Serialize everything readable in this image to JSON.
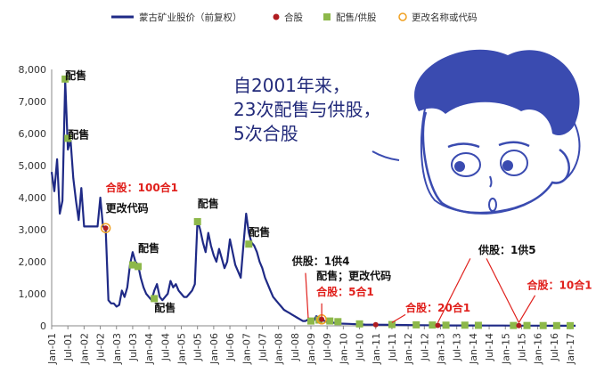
{
  "colors": {
    "price_line": "#1f2a86",
    "merge_marker": "#b01c20",
    "placement_marker": "#8db84a",
    "rename_marker": "#f0a020",
    "annotation_red": "#e0201c",
    "bubble_text": "#222a7a",
    "cartoon_hair": "#3a4bb0"
  },
  "bubble": {
    "line1": "自2001年来，",
    "line2": "23次配售与供股，",
    "line3": "5次合股"
  },
  "chart_data": {
    "type": "line",
    "series": [
      {
        "name": "蒙古矿业股价（前复权）",
        "points": [
          [
            "2001-01",
            4800
          ],
          [
            "2001-02",
            4200
          ],
          [
            "2001-03",
            5200
          ],
          [
            "2001-04",
            3500
          ],
          [
            "2001-05",
            3900
          ],
          [
            "2001-06",
            7650
          ],
          [
            "2001-07",
            5500
          ],
          [
            "2001-08",
            5800
          ],
          [
            "2001-09",
            4600
          ],
          [
            "2001-10",
            3900
          ],
          [
            "2001-11",
            3300
          ],
          [
            "2001-12",
            4300
          ],
          [
            "2002-01",
            3100
          ],
          [
            "2002-02",
            3100
          ],
          [
            "2002-03",
            3100
          ],
          [
            "2002-04",
            3100
          ],
          [
            "2002-05",
            3100
          ],
          [
            "2002-06",
            3100
          ],
          [
            "2002-07",
            4000
          ],
          [
            "2002-08",
            3100
          ],
          [
            "2002-09",
            3050
          ],
          [
            "2002-10",
            800
          ],
          [
            "2002-11",
            700
          ],
          [
            "2002-12",
            700
          ],
          [
            "2003-01",
            600
          ],
          [
            "2003-02",
            650
          ],
          [
            "2003-03",
            1100
          ],
          [
            "2003-04",
            900
          ],
          [
            "2003-05",
            1200
          ],
          [
            "2003-06",
            1900
          ],
          [
            "2003-07",
            2300
          ],
          [
            "2003-08",
            2000
          ],
          [
            "2003-09",
            1900
          ],
          [
            "2003-10",
            1500
          ],
          [
            "2003-11",
            1200
          ],
          [
            "2003-12",
            1000
          ],
          [
            "2004-01",
            900
          ],
          [
            "2004-02",
            800
          ],
          [
            "2004-03",
            1100
          ],
          [
            "2004-04",
            1300
          ],
          [
            "2004-05",
            900
          ],
          [
            "2004-06",
            800
          ],
          [
            "2004-07",
            900
          ],
          [
            "2004-08",
            1000
          ],
          [
            "2004-09",
            1400
          ],
          [
            "2004-10",
            1200
          ],
          [
            "2004-11",
            1300
          ],
          [
            "2004-12",
            1100
          ],
          [
            "2005-01",
            1000
          ],
          [
            "2005-02",
            900
          ],
          [
            "2005-03",
            900
          ],
          [
            "2005-04",
            1000
          ],
          [
            "2005-05",
            1100
          ],
          [
            "2005-06",
            1300
          ],
          [
            "2005-07",
            3300
          ],
          [
            "2005-08",
            3000
          ],
          [
            "2005-09",
            2600
          ],
          [
            "2005-10",
            2300
          ],
          [
            "2005-11",
            2900
          ],
          [
            "2005-12",
            2500
          ],
          [
            "2006-01",
            2200
          ],
          [
            "2006-02",
            2000
          ],
          [
            "2006-03",
            2400
          ],
          [
            "2006-04",
            2100
          ],
          [
            "2006-05",
            1800
          ],
          [
            "2006-06",
            2000
          ],
          [
            "2006-07",
            2700
          ],
          [
            "2006-08",
            2300
          ],
          [
            "2006-09",
            1900
          ],
          [
            "2006-10",
            1700
          ],
          [
            "2006-11",
            1500
          ],
          [
            "2006-12",
            2500
          ],
          [
            "2007-01",
            3500
          ],
          [
            "2007-02",
            2900
          ],
          [
            "2007-03",
            2600
          ],
          [
            "2007-04",
            2500
          ],
          [
            "2007-05",
            2300
          ],
          [
            "2007-06",
            2000
          ],
          [
            "2007-07",
            1800
          ],
          [
            "2007-08",
            1500
          ],
          [
            "2007-09",
            1300
          ],
          [
            "2007-10",
            1100
          ],
          [
            "2007-11",
            900
          ],
          [
            "2007-12",
            800
          ],
          [
            "2008-01",
            700
          ],
          [
            "2008-02",
            600
          ],
          [
            "2008-03",
            500
          ],
          [
            "2008-04",
            450
          ],
          [
            "2008-05",
            400
          ],
          [
            "2008-06",
            350
          ],
          [
            "2008-07",
            300
          ],
          [
            "2008-08",
            250
          ],
          [
            "2008-09",
            200
          ],
          [
            "2008-10",
            150
          ],
          [
            "2008-11",
            150
          ],
          [
            "2008-12",
            200
          ],
          [
            "2009-01",
            180
          ],
          [
            "2009-02",
            150
          ],
          [
            "2009-03",
            300
          ],
          [
            "2009-04",
            250
          ],
          [
            "2009-05",
            200
          ],
          [
            "2009-06",
            150
          ],
          [
            "2009-07",
            120
          ],
          [
            "2009-08",
            110
          ],
          [
            "2009-09",
            100
          ],
          [
            "2009-10",
            90
          ],
          [
            "2009-11",
            80
          ],
          [
            "2009-12",
            70
          ],
          [
            "2010-03",
            60
          ],
          [
            "2010-06",
            50
          ],
          [
            "2010-09",
            40
          ],
          [
            "2010-12",
            35
          ],
          [
            "2011-06",
            30
          ],
          [
            "2011-12",
            25
          ],
          [
            "2012-06",
            20
          ],
          [
            "2012-12",
            15
          ],
          [
            "2013-06",
            12
          ],
          [
            "2013-12",
            10
          ],
          [
            "2014-06",
            8
          ],
          [
            "2014-12",
            7
          ],
          [
            "2015-06",
            6
          ],
          [
            "2015-12",
            5
          ],
          [
            "2016-06",
            4
          ],
          [
            "2016-12",
            4
          ],
          [
            "2017-03",
            3
          ]
        ]
      }
    ],
    "events": {
      "merge": [
        "2002-09",
        "2009-05",
        "2011-01",
        "2012-12",
        "2015-06"
      ],
      "placement": [
        [
          "2001-06",
          7700
        ],
        [
          "2001-07",
          5850
        ],
        [
          "2003-07",
          1900
        ],
        [
          "2003-09",
          1850
        ],
        [
          "2004-03",
          850
        ],
        [
          "2005-07",
          3250
        ],
        [
          "2007-02",
          2550
        ],
        [
          "2009-01",
          150
        ],
        [
          "2009-04",
          180
        ],
        [
          "2009-08",
          150
        ],
        [
          "2009-11",
          130
        ],
        [
          "2010-07",
          60
        ],
        [
          "2011-07",
          40
        ],
        [
          "2012-04",
          30
        ],
        [
          "2012-10",
          25
        ],
        [
          "2013-03",
          20
        ],
        [
          "2013-10",
          20
        ],
        [
          "2014-03",
          15
        ],
        [
          "2015-04",
          10
        ],
        [
          "2015-09",
          10
        ],
        [
          "2016-03",
          8
        ],
        [
          "2016-08",
          6
        ],
        [
          "2017-01",
          5
        ]
      ],
      "rename": [
        "2002-09",
        "2009-05"
      ]
    },
    "annotations": [
      {
        "text": "配售",
        "style": "black",
        "at": [
          "2001-06",
          7700
        ]
      },
      {
        "text": "配售",
        "style": "black",
        "at": [
          "2001-07",
          5850
        ]
      },
      {
        "text": "合股：100合1",
        "style": "red",
        "at": [
          "2002-09",
          4200
        ]
      },
      {
        "text": "更改代码",
        "style": "black",
        "at": [
          "2002-09",
          3550
        ]
      },
      {
        "text": "配售",
        "style": "black",
        "at": [
          "2003-09",
          2300
        ]
      },
      {
        "text": "配售",
        "style": "black",
        "at": [
          "2004-03",
          450
        ]
      },
      {
        "text": "配售",
        "style": "black",
        "at": [
          "2005-07",
          3700
        ]
      },
      {
        "text": "配售",
        "style": "black",
        "at": [
          "2007-02",
          2800
        ]
      },
      {
        "text": "供股：1供4",
        "style": "black",
        "at": [
          "2008-06",
          1900
        ]
      },
      {
        "text": "配售；更改代码",
        "style": "black",
        "at": [
          "2009-03",
          1450
        ]
      },
      {
        "text": "合股：5合1",
        "style": "red",
        "at": [
          "2009-03",
          950
        ]
      },
      {
        "text": "合股：20合1",
        "style": "red",
        "at": [
          "2011-12",
          450
        ]
      },
      {
        "text": "供股：1供5",
        "style": "black",
        "at": [
          "2014-03",
          2250
        ]
      },
      {
        "text": "合股：10合1",
        "style": "red",
        "at": [
          "2015-09",
          1150
        ]
      }
    ],
    "legend": [
      "蒙古矿业股价（前复权）",
      "合股",
      "配售/供股",
      "更改名称或代码"
    ],
    "legend_position": "top",
    "yticks": [
      "0",
      "1,000",
      "2,000",
      "3,000",
      "4,000",
      "5,000",
      "6,000",
      "7,000",
      "8,000"
    ],
    "xticks": [
      "Jan-01",
      "Jul-01",
      "Jan-02",
      "Jul-02",
      "Jan-03",
      "Jul-03",
      "Jan-04",
      "Jul-04",
      "Jan-05",
      "Jul-05",
      "Jan-06",
      "Jul-06",
      "Jan-07",
      "Jul-07",
      "Jan-08",
      "Jul-08",
      "Jan-09",
      "Jul-09",
      "Jan-10",
      "Jul-10",
      "Jan-11",
      "Jul-11",
      "Jan-12",
      "Jul-12",
      "Jan-13",
      "Jul-13",
      "Jan-14",
      "Jul-14",
      "Jan-15",
      "Jul-15",
      "Jan-16",
      "Jul-16",
      "Jan-17"
    ],
    "ylim": [
      0,
      8000
    ],
    "xlim": [
      "2001-01",
      "2017-01"
    ],
    "grid": false
  }
}
